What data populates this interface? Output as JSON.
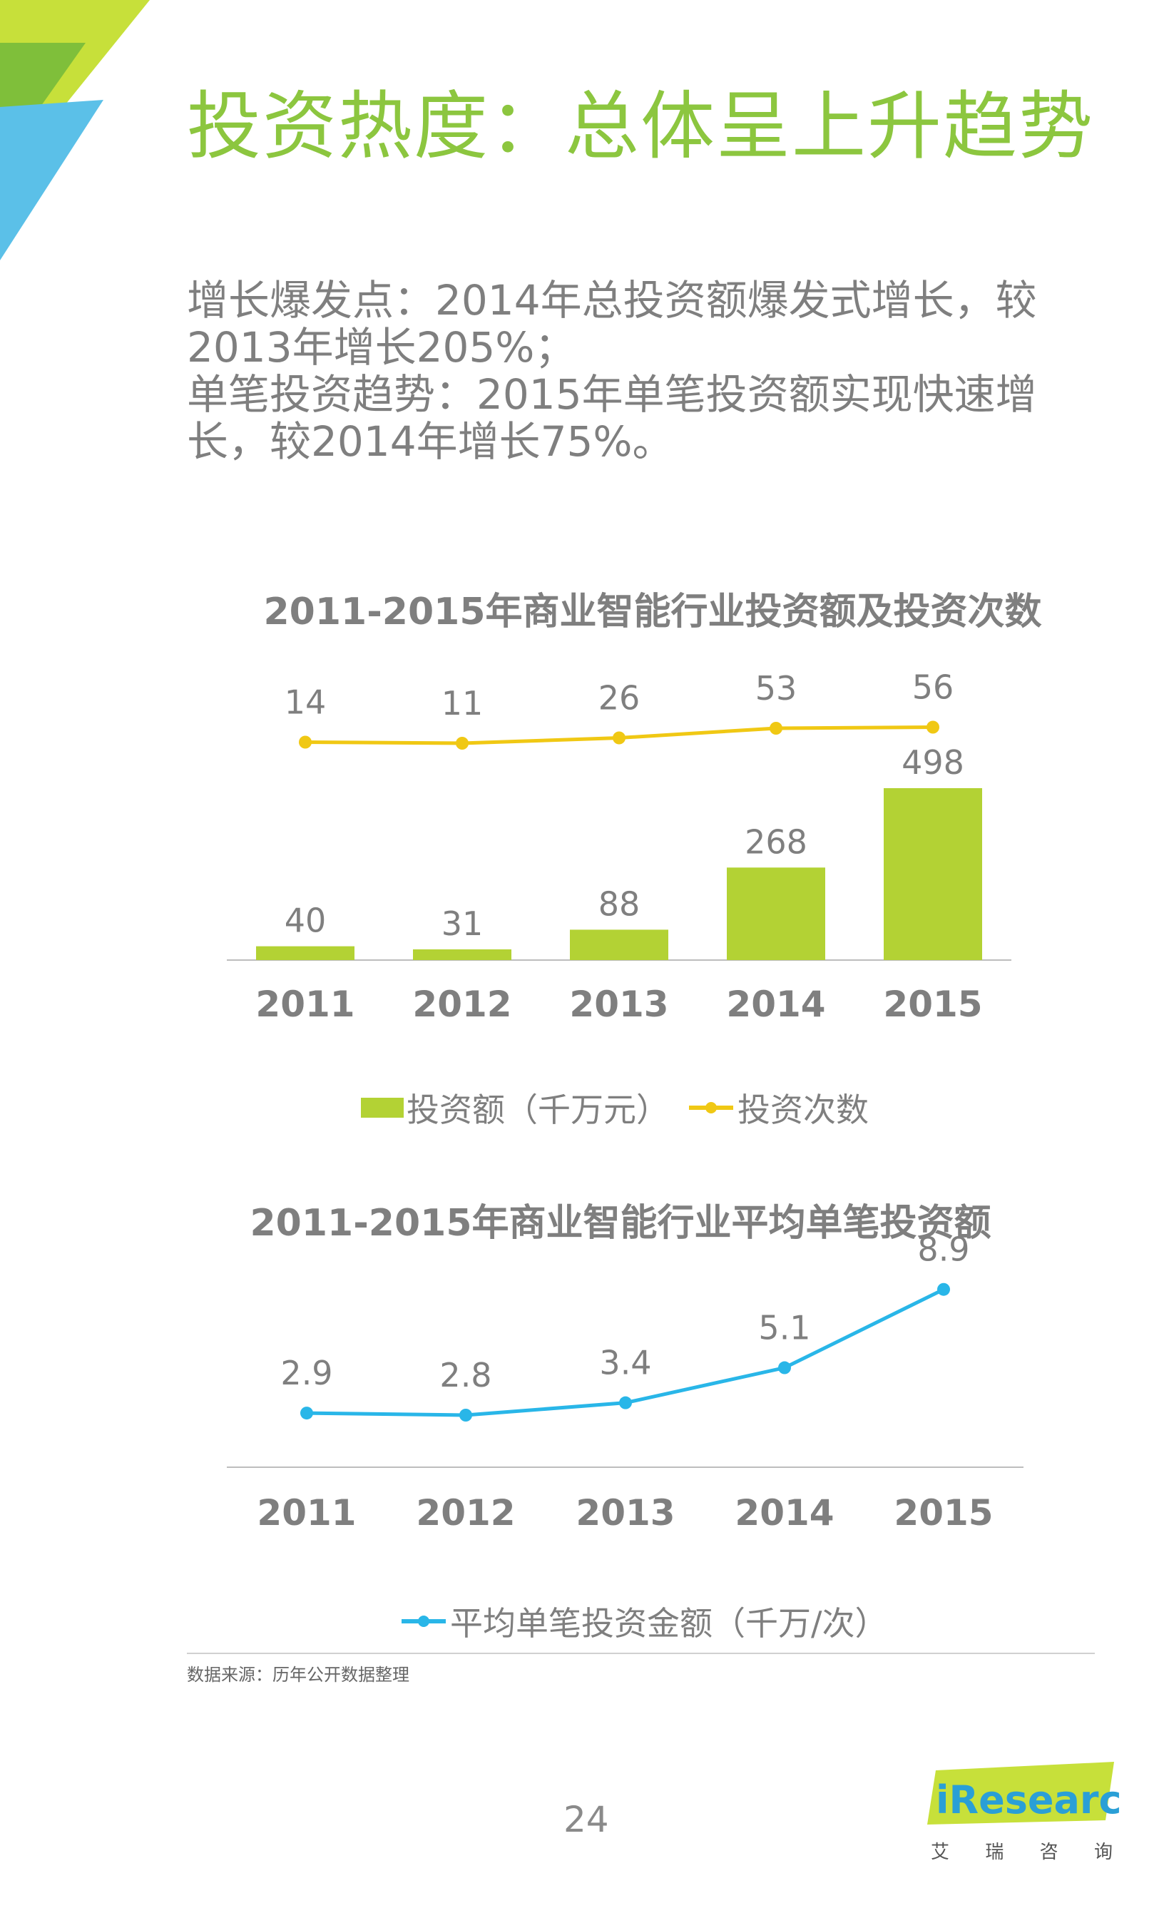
{
  "title": "投资热度：总体呈上升趋势",
  "intro_lines": [
    "增长爆发点：2014年总投资额爆发式增长，较",
    "2013年增长205%；",
    "单笔投资趋势：2015年单笔投资额实现快速增",
    "长，较2014年增长75%。"
  ],
  "colors": {
    "accent_green": "#8cc63f",
    "bar_green": "#b3d234",
    "line_yellow": "#f0c814",
    "line_blue": "#29b6e8"
  },
  "chart_data": [
    {
      "type": "bar",
      "title": "2011-2015年商业智能行业投资额及投资次数",
      "categories": [
        "2011",
        "2012",
        "2013",
        "2014",
        "2015"
      ],
      "series": [
        {
          "name": "投资额（千万元）",
          "type": "bar",
          "values": [
            40,
            31,
            88,
            268,
            498
          ],
          "color": "#b3d234"
        },
        {
          "name": "投资次数",
          "type": "line",
          "values": [
            14,
            11,
            26,
            53,
            56
          ],
          "color": "#f0c814"
        }
      ],
      "legend": "bottom"
    },
    {
      "type": "line",
      "title": "2011-2015年商业智能行业平均单笔投资额",
      "categories": [
        "2011",
        "2012",
        "2013",
        "2014",
        "2015"
      ],
      "series": [
        {
          "name": "平均单笔投资金额（千万/次）",
          "values": [
            2.9,
            2.8,
            3.4,
            5.1,
            8.9
          ],
          "color": "#29b6e8"
        }
      ],
      "legend": "bottom"
    }
  ],
  "source": "数据来源：历年公开数据整理",
  "page_number": "24",
  "logo": {
    "brand": "iResearch",
    "cn_chars": [
      "艾",
      "瑞",
      "咨",
      "询"
    ]
  }
}
